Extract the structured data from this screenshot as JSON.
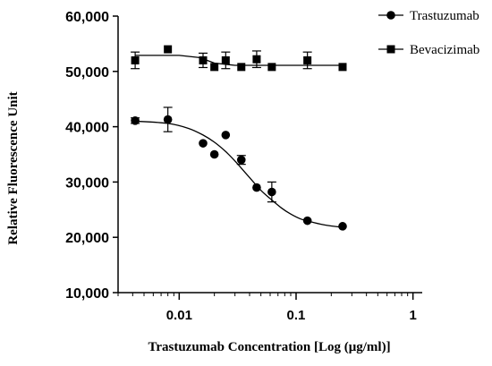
{
  "chart_data": {
    "type": "scatter",
    "xlabel": "Trastuzumab Concentration [Log (μg/ml)]",
    "ylabel": "Relative Fluorescence Unit",
    "x_scale": "log",
    "xlim": [
      0.003,
      1.2
    ],
    "ylim": [
      10000,
      60000
    ],
    "x_ticks": [
      0.01,
      0.1,
      1
    ],
    "x_tick_labels": [
      "0.01",
      "0.1",
      "1"
    ],
    "y_ticks": [
      10000,
      20000,
      30000,
      40000,
      50000,
      60000
    ],
    "y_tick_labels": [
      "10,000",
      "20,000",
      "30,000",
      "40,000",
      "50,000",
      "60,000"
    ],
    "legend_position": "top-right",
    "series": [
      {
        "name": "Trastuzumab",
        "marker": "circle",
        "color": "#000000",
        "fit": "sigmoid",
        "points": [
          {
            "x": 0.0042,
            "y": 41100,
            "err": 500
          },
          {
            "x": 0.008,
            "y": 41300,
            "err": 2200
          },
          {
            "x": 0.016,
            "y": 37000,
            "err": 0
          },
          {
            "x": 0.02,
            "y": 35000,
            "err": 0
          },
          {
            "x": 0.025,
            "y": 38500,
            "err": 0
          },
          {
            "x": 0.034,
            "y": 34000,
            "err": 800
          },
          {
            "x": 0.046,
            "y": 29000,
            "err": 0
          },
          {
            "x": 0.062,
            "y": 28200,
            "err": 1800
          },
          {
            "x": 0.125,
            "y": 23000,
            "err": 0
          },
          {
            "x": 0.25,
            "y": 22000,
            "err": 0
          }
        ],
        "fit_points": [
          {
            "x": 0.0042,
            "y": 41000
          },
          {
            "x": 0.008,
            "y": 40600
          },
          {
            "x": 0.012,
            "y": 39700
          },
          {
            "x": 0.016,
            "y": 38500
          },
          {
            "x": 0.02,
            "y": 37200
          },
          {
            "x": 0.025,
            "y": 35500
          },
          {
            "x": 0.03,
            "y": 33800
          },
          {
            "x": 0.035,
            "y": 32200
          },
          {
            "x": 0.04,
            "y": 30800
          },
          {
            "x": 0.05,
            "y": 28500
          },
          {
            "x": 0.06,
            "y": 27000
          },
          {
            "x": 0.075,
            "y": 25300
          },
          {
            "x": 0.09,
            "y": 24200
          },
          {
            "x": 0.11,
            "y": 23300
          },
          {
            "x": 0.14,
            "y": 22700
          },
          {
            "x": 0.18,
            "y": 22200
          },
          {
            "x": 0.25,
            "y": 21800
          }
        ]
      },
      {
        "name": "Bevacizimab",
        "marker": "square",
        "color": "#000000",
        "fit": "flat",
        "points": [
          {
            "x": 0.0042,
            "y": 52000,
            "err": 1500
          },
          {
            "x": 0.008,
            "y": 54000,
            "err": 0
          },
          {
            "x": 0.016,
            "y": 52000,
            "err": 1300
          },
          {
            "x": 0.02,
            "y": 50800,
            "err": 0
          },
          {
            "x": 0.025,
            "y": 52000,
            "err": 1500
          },
          {
            "x": 0.034,
            "y": 50800,
            "err": 0
          },
          {
            "x": 0.046,
            "y": 52200,
            "err": 1500
          },
          {
            "x": 0.062,
            "y": 50800,
            "err": 0
          },
          {
            "x": 0.125,
            "y": 52000,
            "err": 1500
          },
          {
            "x": 0.25,
            "y": 50800,
            "err": 0
          }
        ],
        "fit_points": [
          {
            "x": 0.0042,
            "y": 52900
          },
          {
            "x": 0.01,
            "y": 52900
          },
          {
            "x": 0.015,
            "y": 52500
          },
          {
            "x": 0.02,
            "y": 51500
          },
          {
            "x": 0.03,
            "y": 51100
          },
          {
            "x": 0.25,
            "y": 51100
          }
        ]
      }
    ]
  }
}
